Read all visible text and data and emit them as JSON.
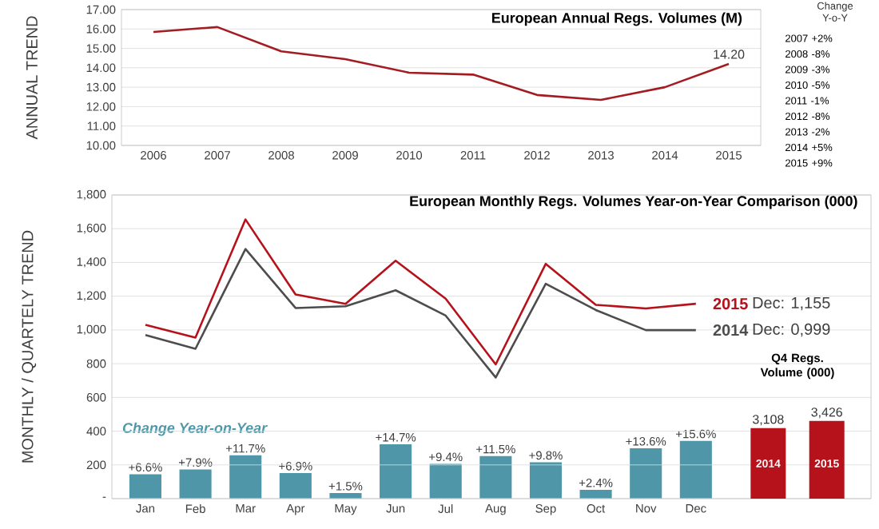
{
  "chart_data": [
    {
      "type": "line",
      "title": "European Annual Regs. Volumes (M)",
      "ylabel": "ANNUAL TREND",
      "categories": [
        "2006",
        "2007",
        "2008",
        "2009",
        "2010",
        "2011",
        "2012",
        "2013",
        "2014",
        "2015"
      ],
      "values": [
        15.85,
        16.1,
        14.85,
        14.45,
        13.75,
        13.65,
        12.6,
        12.35,
        13.0,
        14.2
      ],
      "color": "#a31c22",
      "ylim": [
        10,
        17
      ],
      "yticks": [
        {
          "value": 10,
          "label": "10.00"
        },
        {
          "value": 11,
          "label": "11.00"
        },
        {
          "value": 12,
          "label": "12.00"
        },
        {
          "value": 13,
          "label": "13.00"
        },
        {
          "value": 14,
          "label": "14.00"
        },
        {
          "value": 15,
          "label": "15.00"
        },
        {
          "value": 16,
          "label": "16.00"
        },
        {
          "value": 17,
          "label": "17.00"
        }
      ],
      "grid": "y",
      "annotations": [
        {
          "text": "14.20",
          "x": "2015",
          "y": 14.2
        },
        "Change Y-o-Y",
        "2007 +2%",
        "2008 -8%",
        "2009 -3%",
        "2010 -5%",
        "2011 -1%",
        "2012 -8%",
        "2013 -2%",
        "2014 +5%",
        "2015 +9%"
      ]
    },
    {
      "type": "line",
      "title": "European Monthly Regs. Volumes Year-on-Year Comparison (000)",
      "ylabel": "MONTHLY / QUARTELY TREND",
      "categories": [
        "Jan",
        "Feb",
        "Mar",
        "Apr",
        "May",
        "Jun",
        "Jul",
        "Aug",
        "Sep",
        "Oct",
        "Nov",
        "Dec"
      ],
      "series": [
        {
          "name": "2015",
          "color": "#b5121b",
          "values": [
            1030,
            955,
            1655,
            1210,
            1155,
            1410,
            1185,
            796,
            1392,
            1149,
            1127,
            1155
          ]
        },
        {
          "name": "2014",
          "color": "#4d4d4d",
          "values": [
            970,
            888,
            1480,
            1130,
            1140,
            1235,
            1085,
            718,
            1274,
            1118,
            999,
            999
          ]
        },
        {
          "name": "Change Year-on-Year",
          "type": "bar",
          "axis": "y2",
          "color": "#4f97a8",
          "values": [
            6.6,
            7.9,
            11.7,
            6.9,
            1.5,
            14.7,
            9.4,
            11.5,
            9.8,
            2.4,
            13.6,
            15.6
          ],
          "value_labels": [
            "+6.6%",
            "+7.9%",
            "+11.7%",
            "+6.9%",
            "+1.5%",
            "+14.7%",
            "+9.4%",
            "+11.5%",
            "+9.8%",
            "+2.4%",
            "+13.6%",
            "+15.6%"
          ]
        }
      ],
      "ylim": [
        0,
        1800
      ],
      "yticks": [
        {
          "value": 0,
          "label": "-"
        },
        200,
        400,
        600,
        800,
        {
          "value": 1000,
          "label": "1,000"
        },
        {
          "value": 1200,
          "label": "1,200"
        },
        {
          "value": 1400,
          "label": "1,400"
        },
        {
          "value": 1600,
          "label": "1,600"
        },
        {
          "value": 1800,
          "label": "1,800"
        }
      ],
      "y2lim": [
        0,
        82
      ],
      "grid": "y",
      "annotations": [
        "Dec: 1,155",
        "Dec: 0,999"
      ]
    },
    {
      "type": "bar",
      "title": "Q4 Regs. Volume (000)",
      "categories": [
        "2014",
        "2015"
      ],
      "values": [
        3108,
        3426
      ],
      "colors": [
        "#b5121b",
        "#b5121b"
      ],
      "value_labels": [
        "3,108",
        "3,426"
      ]
    }
  ]
}
